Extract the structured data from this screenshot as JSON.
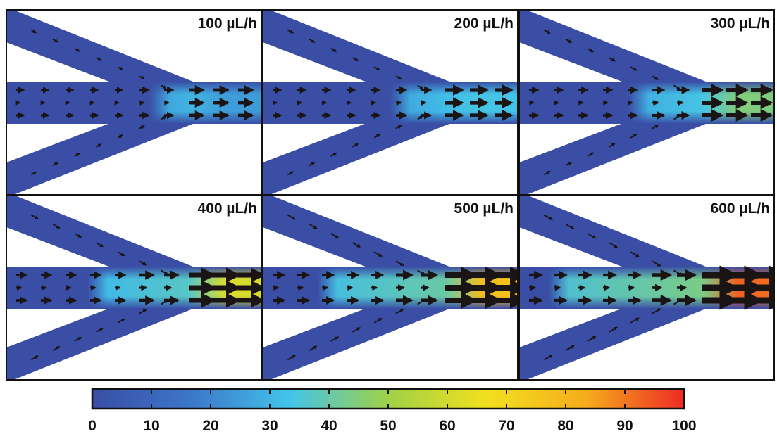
{
  "panels": [
    {
      "label": "100 µL/h",
      "intensity": 0.25
    },
    {
      "label": "200 µL/h",
      "intensity": 0.34
    },
    {
      "label": "300 µL/h",
      "intensity": 0.45
    },
    {
      "label": "400 µL/h",
      "intensity": 0.62
    },
    {
      "label": "500 µL/h",
      "intensity": 0.78
    },
    {
      "label": "600 µL/h",
      "intensity": 0.93
    }
  ],
  "colorbar": {
    "ticks": [
      "0",
      "10",
      "20",
      "30",
      "40",
      "50",
      "60",
      "70",
      "80",
      "90",
      "100"
    ],
    "colors": [
      "#3a4ea6",
      "#3c76c8",
      "#42c4ea",
      "#9fd147",
      "#f2e01f",
      "#f5ad1c",
      "#ee2a24"
    ]
  }
}
